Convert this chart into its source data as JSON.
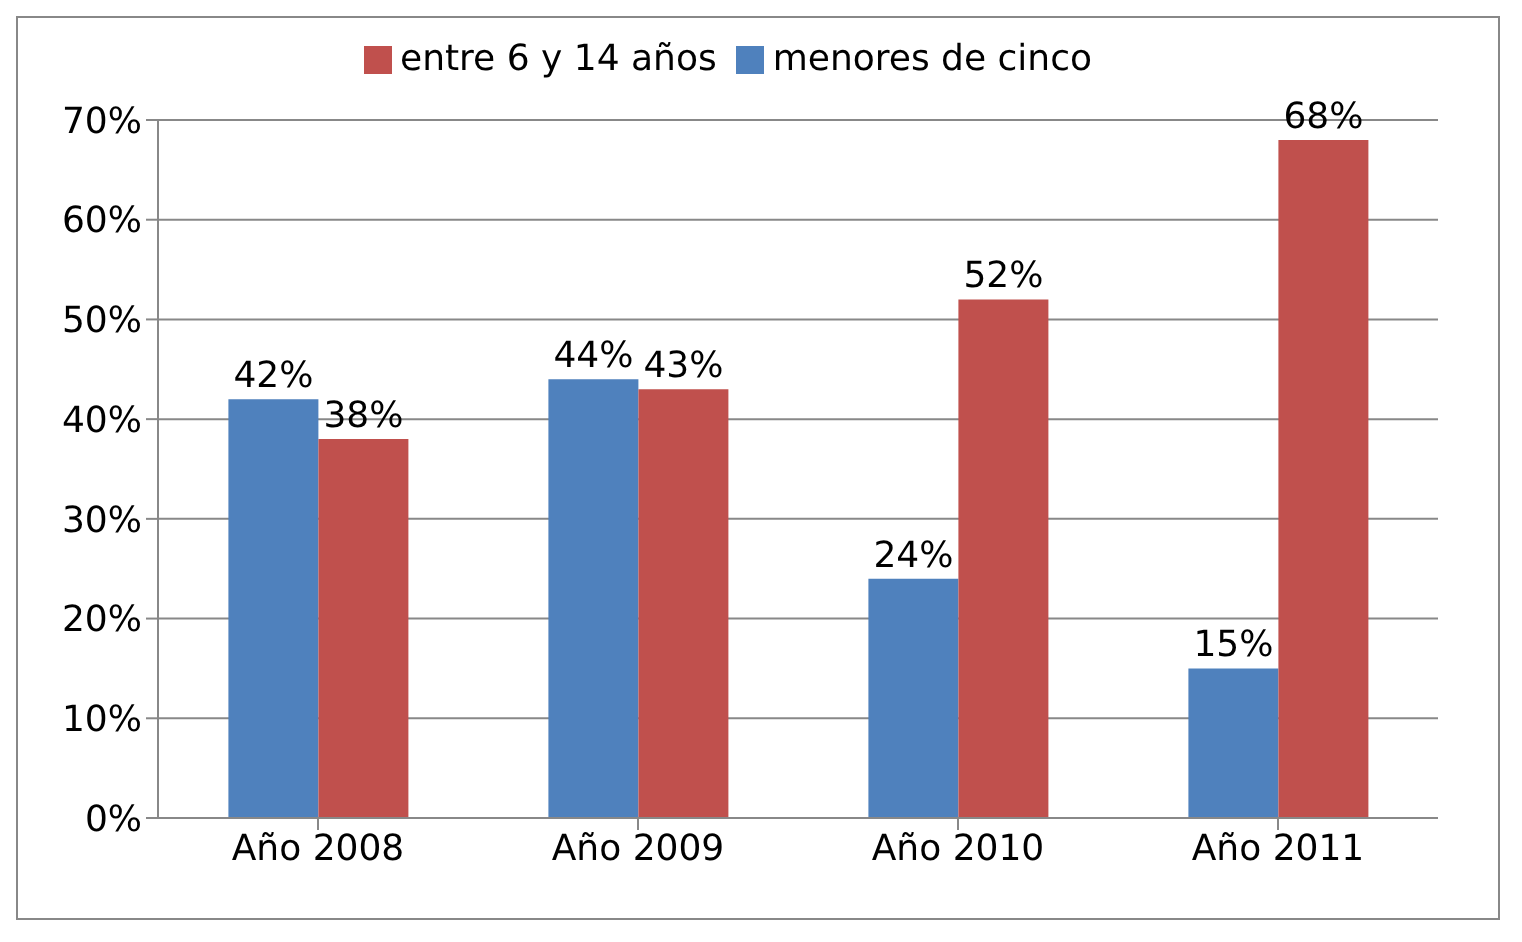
{
  "chart_data": {
    "type": "bar",
    "categories": [
      "Año 2008",
      "Año 2009",
      "Año 2010",
      "Año 2011"
    ],
    "series": [
      {
        "name": "menores de cinco",
        "color": "#4f81bd",
        "values": [
          42,
          44,
          24,
          15
        ],
        "value_labels": [
          "42%",
          "44%",
          "24%",
          "15%"
        ]
      },
      {
        "name": "entre 6 y 14 años",
        "color": "#c0504d",
        "values": [
          38,
          43,
          52,
          68
        ],
        "value_labels": [
          "38%",
          "43%",
          "52%",
          "68%"
        ]
      }
    ],
    "ylim": [
      0,
      70
    ],
    "yticks": [
      {
        "value": 0,
        "label": "0%"
      },
      {
        "value": 10,
        "label": "10%"
      },
      {
        "value": 20,
        "label": "20%"
      },
      {
        "value": 30,
        "label": "30%"
      },
      {
        "value": 40,
        "label": "40%"
      },
      {
        "value": 50,
        "label": "50%"
      },
      {
        "value": 60,
        "label": "60%"
      },
      {
        "value": 70,
        "label": "70%"
      }
    ],
    "grid": "y",
    "legend": "top"
  }
}
